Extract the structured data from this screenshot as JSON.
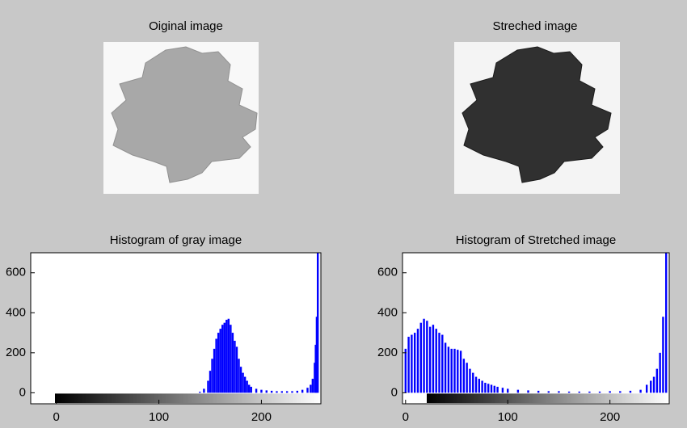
{
  "chart_data": [
    {
      "type": "image",
      "title": "Oiginal image"
    },
    {
      "type": "image",
      "title": "Streched image"
    },
    {
      "type": "bar",
      "title": "Histogram of gray image",
      "color": "#0000ff",
      "x": [
        140,
        144,
        148,
        150,
        152,
        154,
        156,
        158,
        160,
        162,
        164,
        166,
        168,
        170,
        172,
        174,
        176,
        178,
        180,
        182,
        184,
        186,
        188,
        190,
        195,
        200,
        205,
        210,
        215,
        220,
        225,
        230,
        235,
        240,
        245,
        248,
        250,
        252,
        253,
        254,
        255
      ],
      "values": [
        5,
        20,
        60,
        110,
        170,
        220,
        270,
        300,
        320,
        340,
        350,
        365,
        370,
        340,
        300,
        260,
        230,
        170,
        130,
        100,
        80,
        60,
        40,
        30,
        20,
        15,
        12,
        10,
        8,
        8,
        8,
        8,
        10,
        15,
        25,
        40,
        70,
        150,
        240,
        380,
        700
      ],
      "xlim": [
        -25,
        258
      ],
      "ylim": [
        -55,
        700
      ],
      "xticks": [
        0,
        100,
        200
      ],
      "yticks": [
        0,
        200,
        400,
        600
      ]
    },
    {
      "type": "bar",
      "title": "Histogram of Stretched image",
      "color": "#0000ff",
      "x": [
        0,
        3,
        6,
        9,
        12,
        15,
        18,
        21,
        24,
        27,
        30,
        33,
        36,
        39,
        42,
        45,
        48,
        51,
        54,
        57,
        60,
        63,
        66,
        69,
        72,
        75,
        78,
        81,
        84,
        87,
        90,
        95,
        100,
        110,
        120,
        130,
        140,
        150,
        160,
        170,
        180,
        190,
        200,
        210,
        220,
        230,
        236,
        240,
        243,
        246,
        249,
        252,
        255
      ],
      "values": [
        220,
        280,
        290,
        300,
        320,
        350,
        370,
        360,
        330,
        340,
        320,
        300,
        290,
        250,
        230,
        220,
        220,
        215,
        210,
        170,
        150,
        120,
        100,
        80,
        70,
        60,
        50,
        45,
        40,
        35,
        30,
        25,
        20,
        15,
        12,
        10,
        8,
        8,
        6,
        6,
        6,
        6,
        8,
        8,
        10,
        15,
        40,
        60,
        80,
        120,
        200,
        380,
        700
      ],
      "xlim": [
        -3,
        258
      ],
      "ylim": [
        -55,
        700
      ],
      "xticks": [
        0,
        100,
        200
      ],
      "yticks": [
        0,
        200,
        400,
        600
      ]
    }
  ]
}
